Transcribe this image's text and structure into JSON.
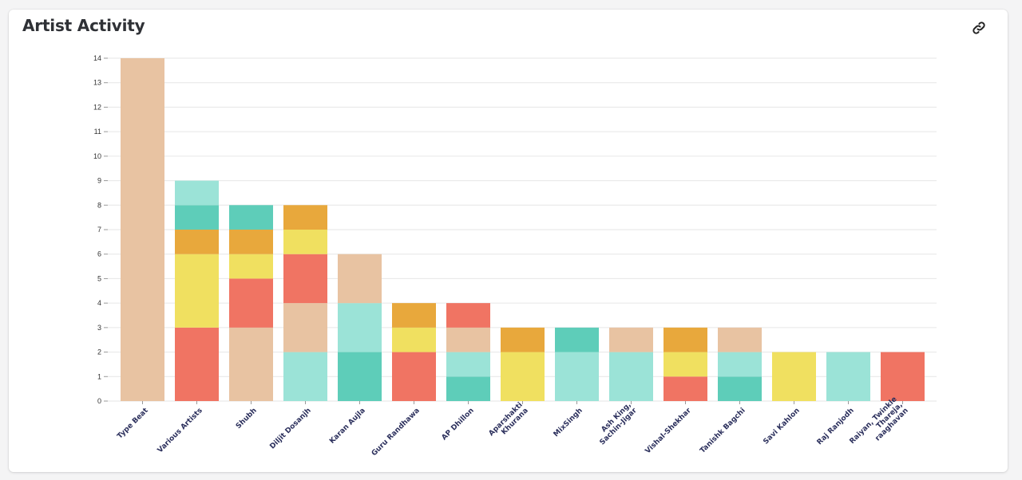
{
  "header": {
    "title": "Artist Activity",
    "link_icon": "link-icon"
  },
  "colors": {
    "peach": "#e8c3a2",
    "red": "#f07463",
    "yellow": "#f0e060",
    "orange": "#e8a83c",
    "teal": "#5ecdb9",
    "mint": "#9be3d7",
    "grid": "#e6e6e6"
  },
  "chart_data": {
    "type": "bar",
    "stacked": true,
    "ylim": [
      0,
      14
    ],
    "yticks": [
      0,
      1,
      2,
      3,
      4,
      5,
      6,
      7,
      8,
      9,
      10,
      11,
      12,
      13,
      14
    ],
    "grid": true,
    "categories": [
      [
        "Type Beat"
      ],
      [
        "Various Artists"
      ],
      [
        "Shubh"
      ],
      [
        "Diljit Dosanjh"
      ],
      [
        "Karan Aujla"
      ],
      [
        "Guru Randhawa"
      ],
      [
        "AP Dhillon"
      ],
      [
        "Aparshakti",
        "Khurana"
      ],
      [
        "MixSingh"
      ],
      [
        "Ash King,",
        "Sachin-Jigar"
      ],
      [
        "Vishal-Shekhar"
      ],
      [
        "Tanishk Bagchi"
      ],
      [
        "Savi Kahlon"
      ],
      [
        "Raj Ranjodh"
      ],
      [
        "Raiyan, Twinkle",
        "Thareja,",
        "raaghavan"
      ]
    ],
    "stacks": [
      [
        {
          "color": "peach",
          "value": 14
        }
      ],
      [
        {
          "color": "red",
          "value": 3
        },
        {
          "color": "yellow",
          "value": 3
        },
        {
          "color": "orange",
          "value": 1
        },
        {
          "color": "teal",
          "value": 1
        },
        {
          "color": "mint",
          "value": 1
        }
      ],
      [
        {
          "color": "peach",
          "value": 3
        },
        {
          "color": "red",
          "value": 2
        },
        {
          "color": "yellow",
          "value": 1
        },
        {
          "color": "orange",
          "value": 1
        },
        {
          "color": "teal",
          "value": 1
        }
      ],
      [
        {
          "color": "mint",
          "value": 2
        },
        {
          "color": "peach",
          "value": 2
        },
        {
          "color": "red",
          "value": 2
        },
        {
          "color": "yellow",
          "value": 1
        },
        {
          "color": "orange",
          "value": 1
        }
      ],
      [
        {
          "color": "teal",
          "value": 2
        },
        {
          "color": "mint",
          "value": 2
        },
        {
          "color": "peach",
          "value": 2
        }
      ],
      [
        {
          "color": "red",
          "value": 2
        },
        {
          "color": "yellow",
          "value": 1
        },
        {
          "color": "orange",
          "value": 1
        }
      ],
      [
        {
          "color": "teal",
          "value": 1
        },
        {
          "color": "mint",
          "value": 1
        },
        {
          "color": "peach",
          "value": 1
        },
        {
          "color": "red",
          "value": 1
        }
      ],
      [
        {
          "color": "yellow",
          "value": 2
        },
        {
          "color": "orange",
          "value": 1
        }
      ],
      [
        {
          "color": "mint",
          "value": 2
        },
        {
          "color": "teal",
          "value": 1
        }
      ],
      [
        {
          "color": "mint",
          "value": 2
        },
        {
          "color": "peach",
          "value": 1
        }
      ],
      [
        {
          "color": "red",
          "value": 1
        },
        {
          "color": "yellow",
          "value": 1
        },
        {
          "color": "orange",
          "value": 1
        }
      ],
      [
        {
          "color": "teal",
          "value": 1
        },
        {
          "color": "mint",
          "value": 1
        },
        {
          "color": "peach",
          "value": 1
        }
      ],
      [
        {
          "color": "yellow",
          "value": 2
        }
      ],
      [
        {
          "color": "mint",
          "value": 2
        }
      ],
      [
        {
          "color": "red",
          "value": 2
        }
      ]
    ]
  }
}
